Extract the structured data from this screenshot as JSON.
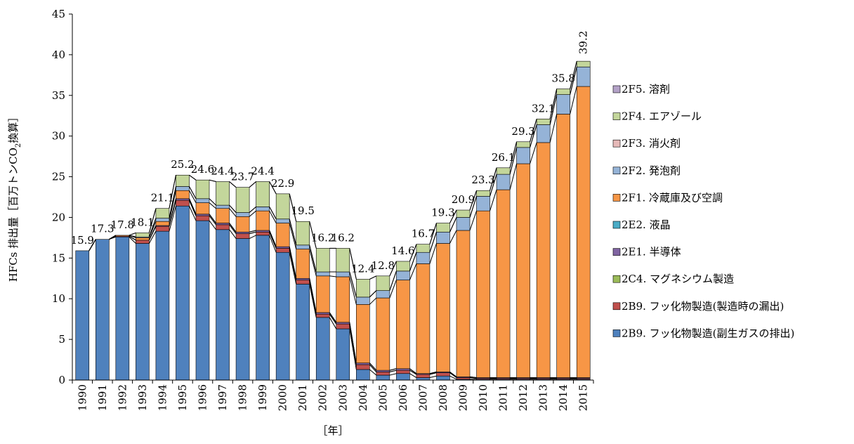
{
  "chart_data": {
    "type": "stacked_bar",
    "ylabel_parts": [
      "HFCs 排出量［百万トンCO",
      "2",
      "換算］"
    ],
    "xlabel": "［年］",
    "categories": [
      "1990",
      "1991",
      "1992",
      "1993",
      "1994",
      "1995",
      "1996",
      "1997",
      "1998",
      "1999",
      "2000",
      "2001",
      "2002",
      "2003",
      "2004",
      "2005",
      "2006",
      "2007",
      "2008",
      "2009",
      "2010",
      "2011",
      "2012",
      "2013",
      "2014",
      "2015"
    ],
    "totals": [
      15.9,
      17.3,
      17.8,
      18.1,
      21.1,
      25.2,
      24.6,
      24.4,
      23.7,
      24.4,
      22.9,
      19.5,
      16.2,
      16.2,
      12.4,
      12.8,
      14.6,
      16.7,
      19.3,
      20.9,
      23.3,
      26.1,
      29.3,
      32.1,
      35.8,
      39.2
    ],
    "series": [
      {
        "name": "2B9. フッ化物製造(副生ガスの排出)",
        "color": "#4f81bd",
        "values": [
          15.9,
          17.3,
          17.6,
          16.8,
          18.3,
          21.4,
          19.6,
          18.5,
          17.4,
          17.8,
          15.7,
          11.8,
          7.7,
          6.3,
          1.3,
          0.6,
          0.8,
          0.3,
          0.5,
          0.1,
          0.1,
          0.1,
          0.1,
          0.1,
          0.1,
          0.1
        ]
      },
      {
        "name": "2B9. フッ化物製造(製造時の漏出)",
        "color": "#c0504d",
        "values": [
          0,
          0,
          0.1,
          0.4,
          0.6,
          0.7,
          0.6,
          0.6,
          0.6,
          0.4,
          0.5,
          0.5,
          0.4,
          0.6,
          0.6,
          0.4,
          0.4,
          0.4,
          0.4,
          0.2,
          0.1,
          0.1,
          0.1,
          0.1,
          0.1,
          0.1
        ]
      },
      {
        "name": "2C4. マグネシウム製造",
        "color": "#9bbb59",
        "values": [
          0,
          0,
          0,
          0,
          0,
          0,
          0,
          0,
          0,
          0,
          0,
          0,
          0,
          0,
          0,
          0,
          0,
          0,
          0,
          0,
          0,
          0,
          0,
          0,
          0,
          0
        ]
      },
      {
        "name": "2E1. 半導体",
        "color": "#8064a2",
        "values": [
          0,
          0,
          0,
          0,
          0.1,
          0.2,
          0.2,
          0.2,
          0.2,
          0.2,
          0.2,
          0.2,
          0.2,
          0.2,
          0.2,
          0.2,
          0.2,
          0.1,
          0.1,
          0.1,
          0.1,
          0.1,
          0.1,
          0.1,
          0.1,
          0.1
        ]
      },
      {
        "name": "2E2. 液晶",
        "color": "#4bacc6",
        "values": [
          0,
          0,
          0,
          0,
          0,
          0,
          0,
          0,
          0,
          0,
          0,
          0,
          0,
          0,
          0,
          0,
          0,
          0,
          0,
          0,
          0,
          0,
          0,
          0,
          0,
          0
        ]
      },
      {
        "name": "2F1. 冷蔵庫及び空調",
        "color": "#f79646",
        "values": [
          0,
          0,
          0.1,
          0.3,
          0.5,
          1.0,
          1.4,
          1.8,
          1.9,
          2.4,
          2.9,
          3.6,
          4.5,
          5.6,
          7.2,
          8.9,
          10.9,
          13.5,
          15.8,
          18.0,
          20.5,
          23.1,
          26.3,
          28.9,
          32.4,
          35.8
        ]
      },
      {
        "name": "2F2. 発泡剤",
        "color": "#95b3d7",
        "values": [
          0,
          0,
          0,
          0.1,
          0.4,
          0.5,
          0.5,
          0.4,
          0.5,
          0.5,
          0.5,
          0.5,
          0.5,
          0.6,
          0.9,
          0.9,
          1.1,
          1.4,
          1.4,
          1.6,
          1.8,
          1.9,
          2.0,
          2.2,
          2.4,
          2.4
        ]
      },
      {
        "name": "2F3. 消火剤",
        "color": "#e6b9b8",
        "values": [
          0,
          0,
          0,
          0,
          0,
          0,
          0,
          0,
          0,
          0,
          0,
          0,
          0,
          0,
          0,
          0,
          0,
          0,
          0,
          0,
          0,
          0,
          0,
          0,
          0,
          0
        ]
      },
      {
        "name": "2F4. エアゾール",
        "color": "#c3d69b",
        "values": [
          0,
          0,
          0,
          0.5,
          1.2,
          1.4,
          2.3,
          2.9,
          3.1,
          3.1,
          3.1,
          2.9,
          2.9,
          2.9,
          2.2,
          1.8,
          1.2,
          1.0,
          1.1,
          0.9,
          0.7,
          0.8,
          0.7,
          0.7,
          0.7,
          0.7
        ]
      },
      {
        "name": "2F5. 溶剤",
        "color": "#b3a2c7",
        "values": [
          0,
          0,
          0,
          0,
          0,
          0,
          0,
          0,
          0,
          0,
          0,
          0,
          0,
          0,
          0,
          0,
          0,
          0,
          0,
          0,
          0,
          0,
          0,
          0,
          0,
          0
        ]
      }
    ],
    "ylim": [
      0,
      45
    ],
    "yticks": [
      0,
      5,
      10,
      15,
      20,
      25,
      30,
      35,
      40,
      45
    ]
  }
}
